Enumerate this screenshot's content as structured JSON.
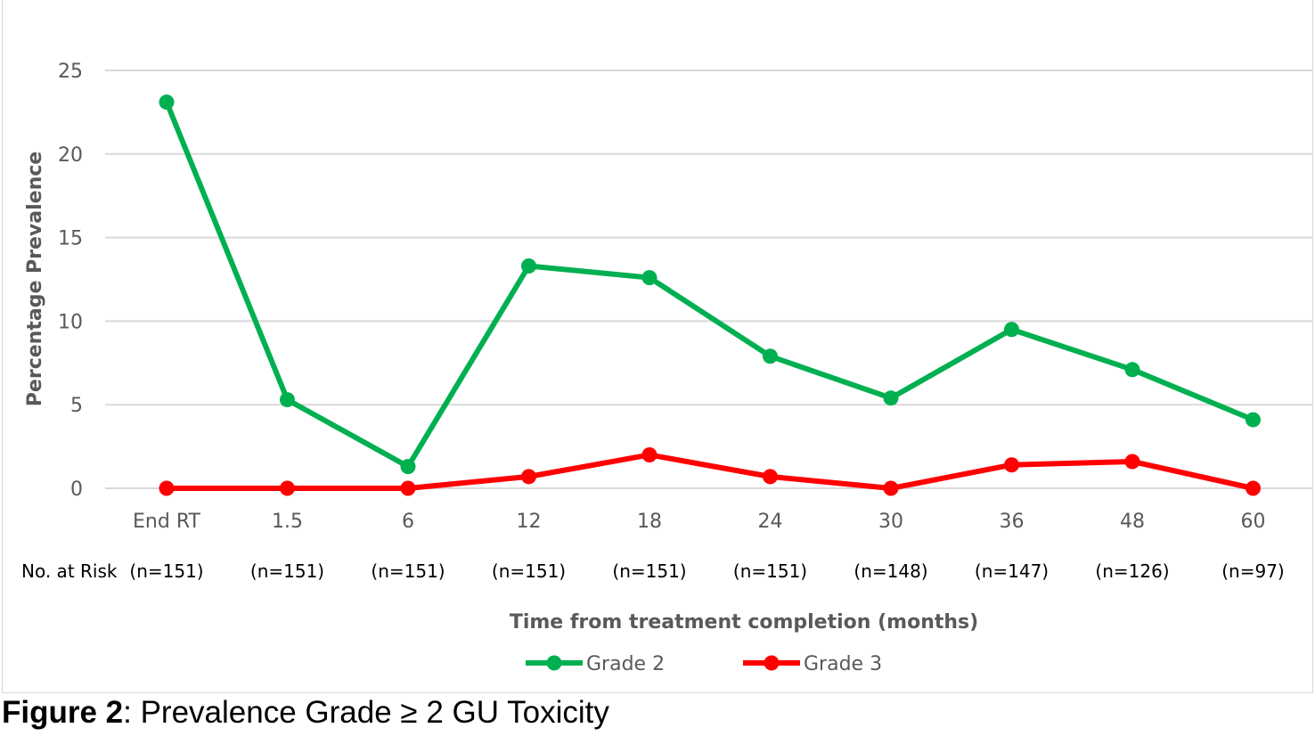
{
  "caption": {
    "label": "Figure 2",
    "text": ": Prevalence Grade ≥ 2 GU Toxicity"
  },
  "chart_data": {
    "type": "line",
    "categories": [
      "End RT",
      "1.5",
      "6",
      "12",
      "18",
      "24",
      "30",
      "36",
      "48",
      "60"
    ],
    "series": [
      {
        "name": "Grade 2",
        "color": "#00b050",
        "values": [
          23.1,
          5.3,
          1.3,
          13.3,
          12.6,
          7.9,
          5.4,
          9.5,
          7.1,
          4.1
        ]
      },
      {
        "name": "Grade 3",
        "color": "#ff0000",
        "values": [
          0,
          0,
          0,
          0.7,
          2.0,
          0.7,
          0,
          1.4,
          1.6,
          0
        ]
      }
    ],
    "ylabel": "Percentage Prevalence",
    "xlabel": "Time from treatment completion (months)",
    "ylim": [
      0,
      25
    ],
    "yticks": [
      0,
      5,
      10,
      15,
      20,
      25
    ],
    "grid": true,
    "legend_position": "bottom",
    "risk_table": {
      "label": "No. at Risk",
      "values": [
        "(n=151)",
        "(n=151)",
        "(n=151)",
        "(n=151)",
        "(n=151)",
        "(n=151)",
        "(n=148)",
        "(n=147)",
        "(n=126)",
        "(n=97)"
      ]
    }
  }
}
